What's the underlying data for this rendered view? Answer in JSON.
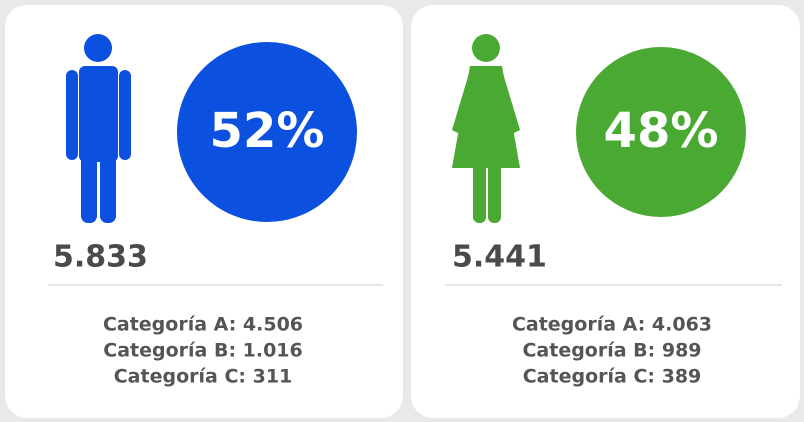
{
  "cards": [
    {
      "percent": "52%",
      "total": "5.833",
      "color": "#0b50de",
      "lines": [
        "Categoría A: 4.506",
        "Categoría B: 1.016",
        "Categoría C: 311"
      ]
    },
    {
      "percent": "48%",
      "total": "5.441",
      "color": "#4aa933",
      "lines": [
        "Categoría A: 4.063",
        "Categoría B: 989",
        "Categoría C: 389"
      ]
    }
  ]
}
